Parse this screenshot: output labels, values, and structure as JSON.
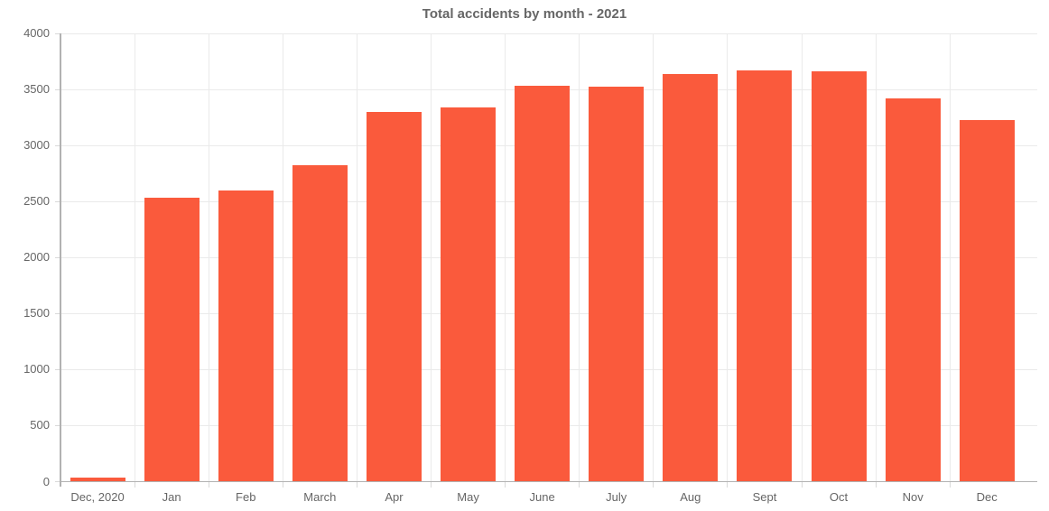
{
  "chart_data": {
    "type": "bar",
    "title": "Total accidents by month - 2021",
    "categories": [
      "Dec, 2020",
      "Jan",
      "Feb",
      "March",
      "Apr",
      "May",
      "June",
      "July",
      "Aug",
      "Sept",
      "Oct",
      "Nov",
      "Dec"
    ],
    "values": [
      40,
      2535,
      2600,
      2825,
      3300,
      3340,
      3535,
      3530,
      3640,
      3675,
      3660,
      3420,
      3225
    ],
    "xlabel": "",
    "ylabel": "",
    "ylim": [
      0,
      4000
    ],
    "ytick_step": 500,
    "ytick_labels": [
      "0",
      "500",
      "1000",
      "1500",
      "2000",
      "2500",
      "3000",
      "3500",
      "4000"
    ],
    "grid": true,
    "legend": false,
    "colors": {
      "bar_fill": "#fa5a3c",
      "bar_border": "rgba(250,90,60,0.5)",
      "gridline": "#eaeaea",
      "axis_line": "#b2b2b2",
      "tick_mark": "#d9d9d9",
      "tick_label": "#666666",
      "title": "#666666"
    }
  }
}
